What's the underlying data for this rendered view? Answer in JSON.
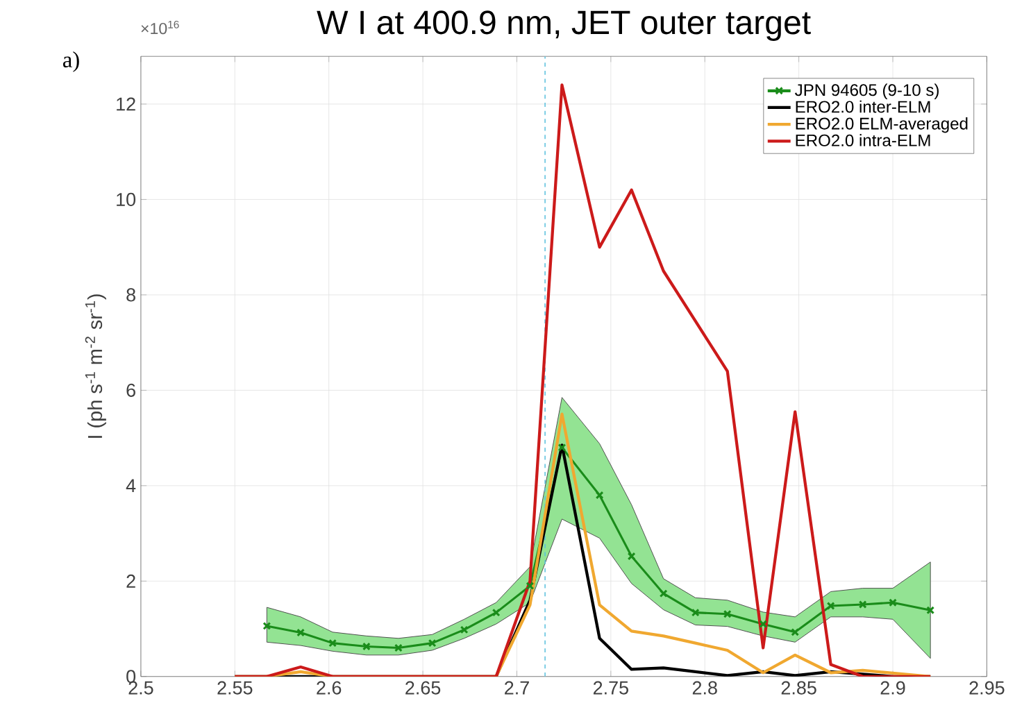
{
  "chart_data": {
    "type": "line",
    "title": "W I at 400.9 nm, JET outer target",
    "ylabel": "I (ph s$^{-1}$ m$^{-2}$ sr$^{-1}$)",
    "annotations": [
      "a)",
      "×10$^{16}$"
    ],
    "xlim": [
      2.5,
      2.95
    ],
    "xticks": [
      2.5,
      2.55,
      2.6,
      2.65,
      2.7,
      2.75,
      2.8,
      2.85,
      2.9,
      2.95
    ],
    "ylim": [
      0,
      13
    ],
    "yticks": [
      0,
      2,
      4,
      6,
      8,
      10,
      12
    ],
    "grid": true,
    "legend": "top right",
    "line_style": "solid",
    "ref_lines": [
      {
        "axis": "x",
        "value": 2.715,
        "color": "#5bc0de",
        "line_style": "dashed"
      }
    ],
    "series": [
      {
        "name": "JPN 94605 (9-10 s)",
        "color": "#1a8c1a",
        "marker": "cross",
        "x": [
          2.567,
          2.585,
          2.602,
          2.62,
          2.637,
          2.655,
          2.672,
          2.689,
          2.707,
          2.724,
          2.744,
          2.761,
          2.778,
          2.795,
          2.812,
          2.831,
          2.848,
          2.867,
          2.884,
          2.9,
          2.92
        ],
        "values": [
          1.06,
          0.92,
          0.7,
          0.63,
          0.6,
          0.7,
          0.98,
          1.34,
          1.9,
          4.8,
          3.8,
          2.52,
          1.74,
          1.34,
          1.31,
          1.1,
          0.93,
          1.48,
          1.51,
          1.55,
          1.39
        ],
        "upper": [
          1.45,
          1.25,
          0.93,
          0.85,
          0.8,
          0.88,
          1.2,
          1.55,
          2.3,
          5.85,
          4.88,
          3.6,
          2.05,
          1.65,
          1.6,
          1.35,
          1.25,
          1.78,
          1.85,
          1.85,
          2.4
        ],
        "lower": [
          0.72,
          0.65,
          0.53,
          0.45,
          0.45,
          0.55,
          0.8,
          1.1,
          1.55,
          3.3,
          2.9,
          1.95,
          1.4,
          1.08,
          1.05,
          0.85,
          0.72,
          1.25,
          1.25,
          1.2,
          0.38
        ]
      },
      {
        "name": "ERO2.0 inter-ELM",
        "color": "#000000",
        "marker": "none",
        "x": [
          2.55,
          2.567,
          2.585,
          2.602,
          2.62,
          2.637,
          2.655,
          2.672,
          2.689,
          2.707,
          2.724,
          2.744,
          2.761,
          2.778,
          2.795,
          2.812,
          2.831,
          2.848,
          2.867,
          2.884,
          2.9,
          2.92
        ],
        "values": [
          0,
          0,
          0,
          0,
          0,
          0,
          0,
          0,
          0,
          1.6,
          4.85,
          0.8,
          0.15,
          0.18,
          0.1,
          0.02,
          0.1,
          0.02,
          0.1,
          0.05,
          0,
          0
        ]
      },
      {
        "name": "ERO2.0 ELM-averaged",
        "color": "#f0a830",
        "marker": "none",
        "x": [
          2.55,
          2.567,
          2.585,
          2.602,
          2.62,
          2.637,
          2.655,
          2.672,
          2.689,
          2.707,
          2.724,
          2.744,
          2.761,
          2.778,
          2.795,
          2.812,
          2.831,
          2.848,
          2.867,
          2.884,
          2.9,
          2.92
        ],
        "values": [
          0,
          0,
          0.1,
          0,
          0,
          0,
          0,
          0,
          0,
          1.5,
          5.5,
          1.5,
          0.95,
          0.85,
          0.7,
          0.55,
          0.08,
          0.45,
          0.08,
          0.13,
          0.07,
          0
        ]
      },
      {
        "name": "ERO2.0 intra-ELM",
        "color": "#cc1a1a",
        "marker": "none",
        "x": [
          2.55,
          2.567,
          2.585,
          2.602,
          2.62,
          2.637,
          2.655,
          2.672,
          2.689,
          2.707,
          2.724,
          2.744,
          2.761,
          2.778,
          2.795,
          2.812,
          2.831,
          2.848,
          2.867,
          2.884,
          2.9,
          2.92
        ],
        "values": [
          0,
          0,
          0.2,
          0,
          0,
          0,
          0,
          0,
          0,
          2.0,
          12.4,
          9.0,
          10.2,
          8.5,
          7.45,
          6.4,
          0.6,
          5.55,
          0.25,
          0,
          0,
          0
        ]
      }
    ]
  }
}
